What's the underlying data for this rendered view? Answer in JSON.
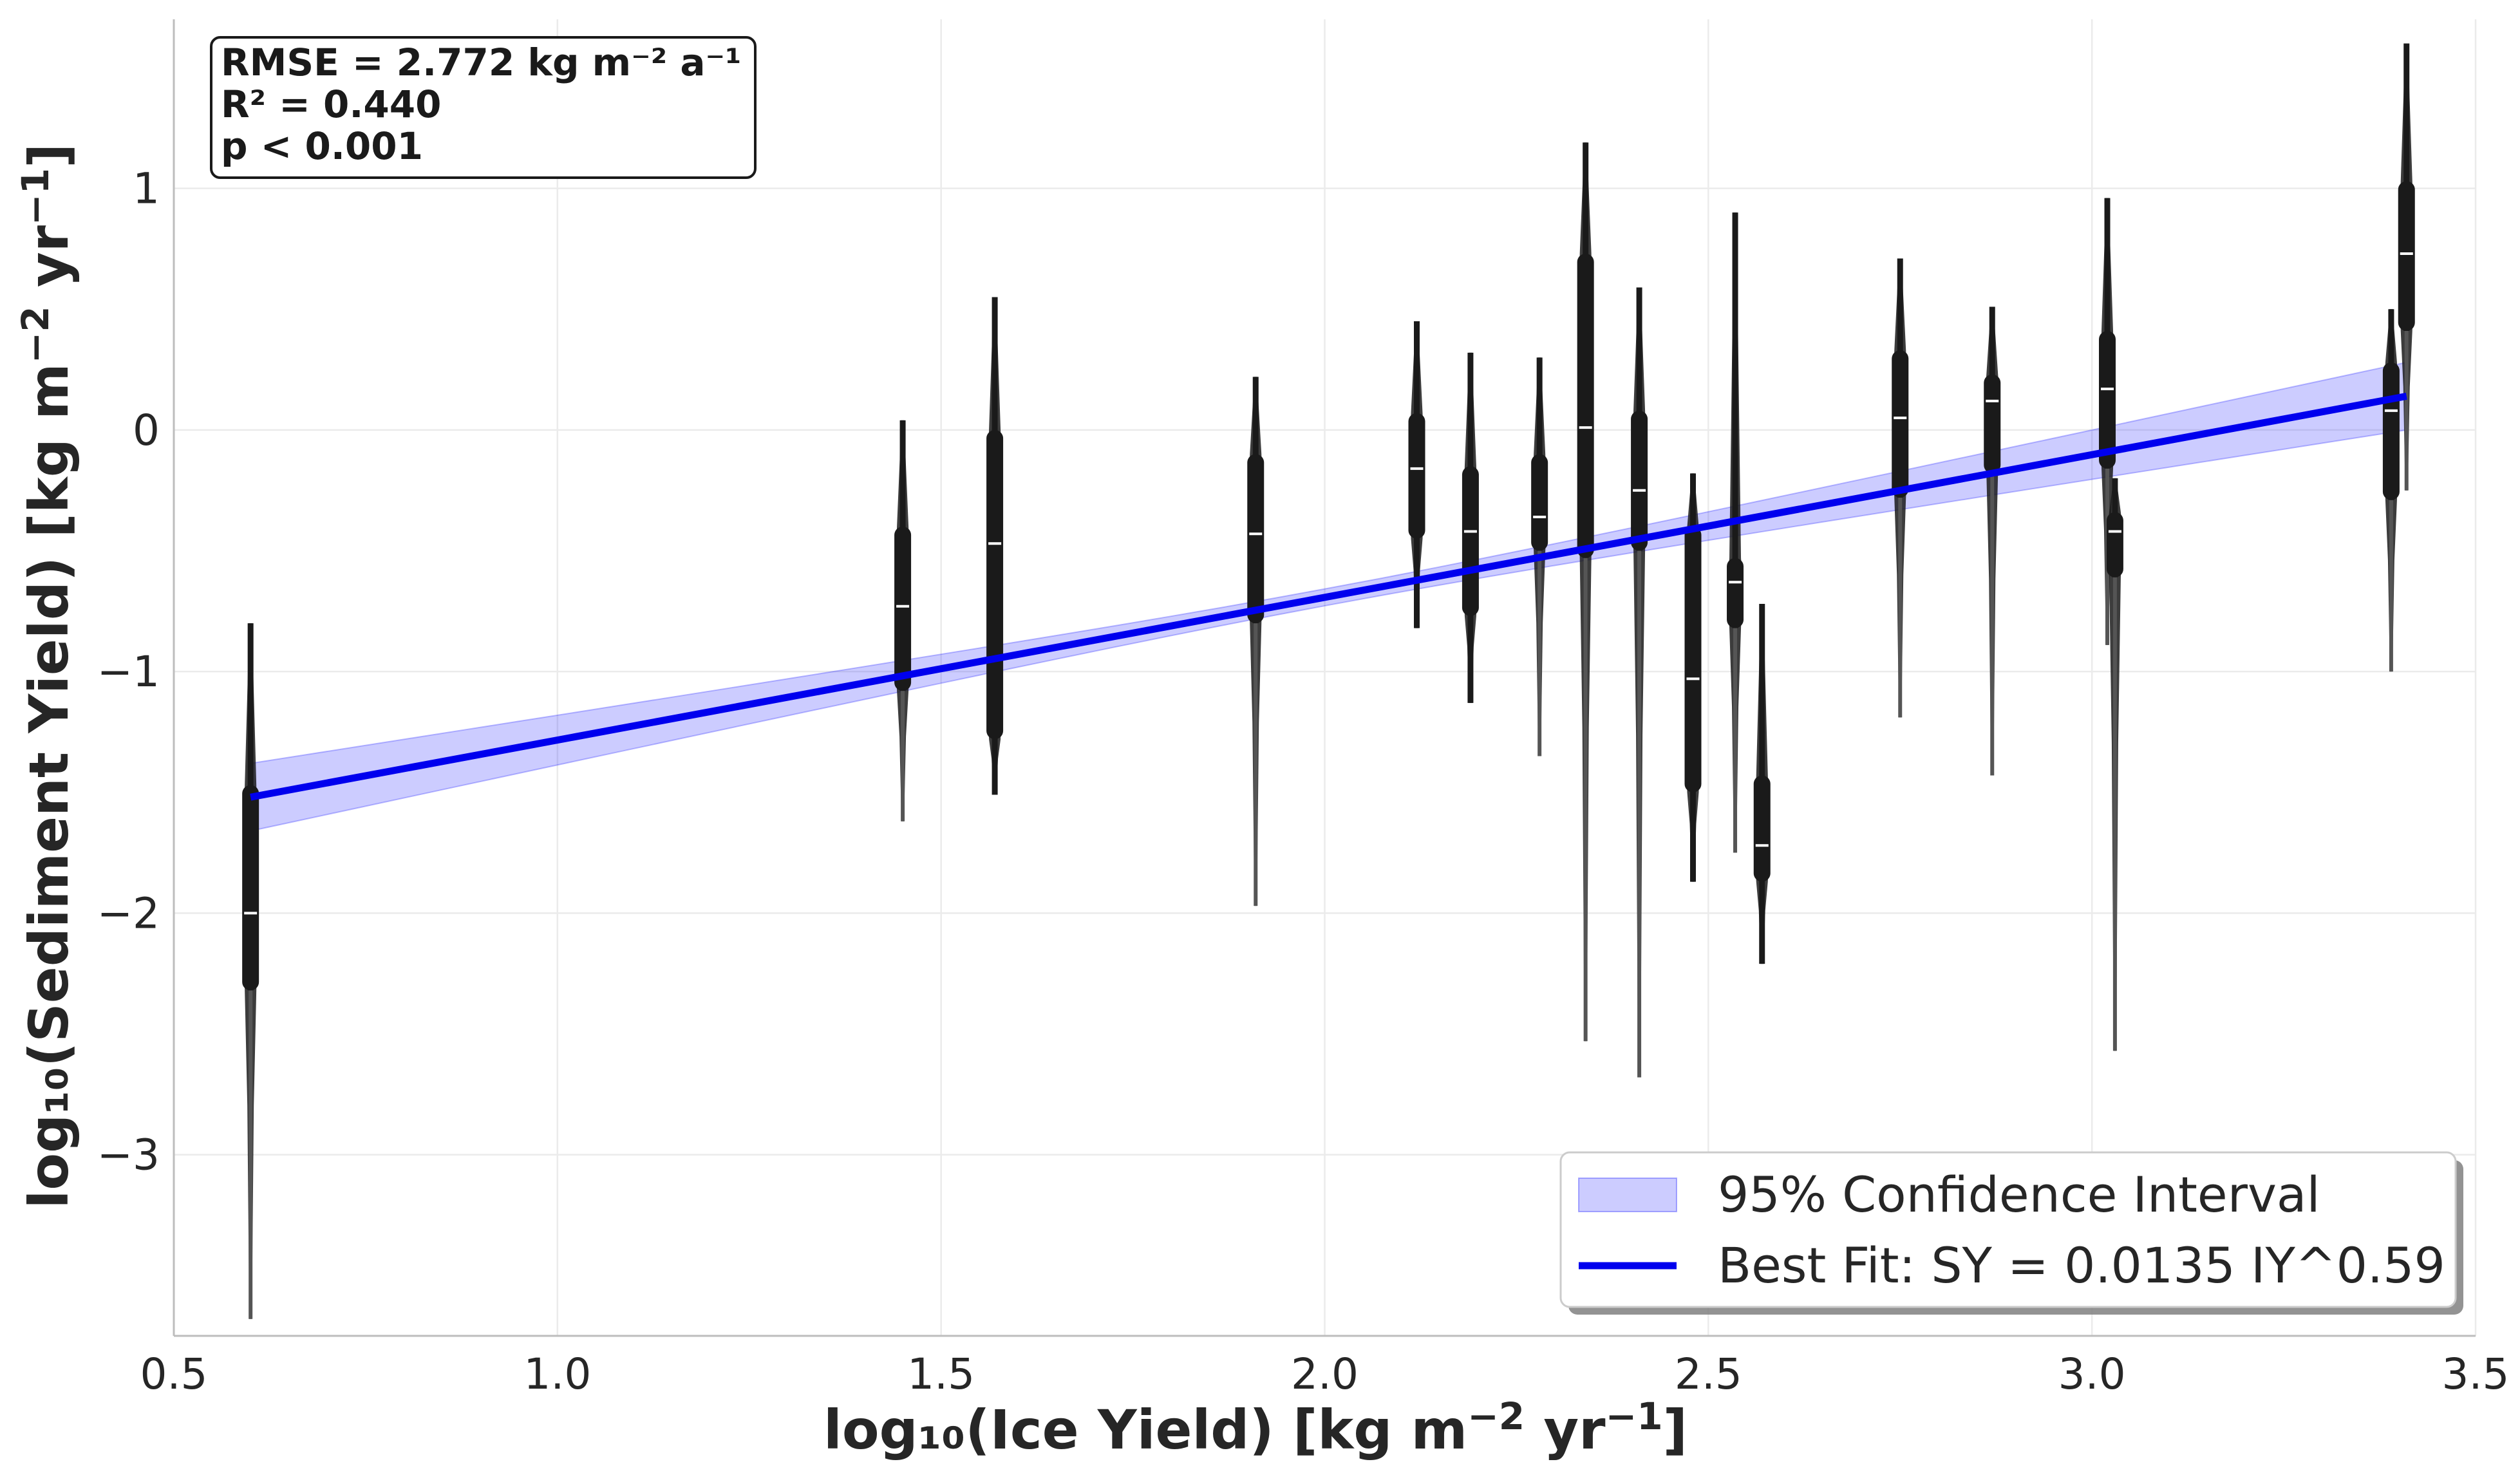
{
  "chart_data": {
    "type": "violin-with-regression",
    "xlabel_main": "log₁₀(Ice Yield) [kg m",
    "xlabel_sup1": "−2",
    "xlabel_mid": " yr",
    "xlabel_sup2": "−1",
    "xlabel_end": "]",
    "ylabel_main": "log₁₀(Sediment Yield) [kg m",
    "ylabel_sup1": "−2",
    "ylabel_mid": " yr",
    "ylabel_sup2": "−1",
    "ylabel_end": "]",
    "xlim": [
      0.5,
      3.5
    ],
    "ylim": [
      -3.75,
      1.7
    ],
    "xticks": [
      0.5,
      1.0,
      1.5,
      2.0,
      2.5,
      3.0,
      3.5
    ],
    "xtick_labels": [
      "0.5",
      "1.0",
      "1.5",
      "2.0",
      "2.5",
      "3.0",
      "3.5"
    ],
    "yticks": [
      1,
      0,
      -1,
      -2,
      -3
    ],
    "ytick_labels": [
      "1",
      "0",
      "−1",
      "−2",
      "−3"
    ],
    "grid": true,
    "stats": {
      "line1": "RMSE = 2.772 kg m⁻² a⁻¹",
      "line2": "R² = 0.440",
      "line3": "p < 0.001"
    },
    "legend": {
      "placement": "lower-right",
      "ci_label": "95% Confidence Interval",
      "fit_label": "Best Fit: SY = 0.0135 IY^0.59"
    },
    "colors": {
      "fit_line": "#0000ee",
      "ci_fill": "#0000ff",
      "violin": "#1a1a1a",
      "median": "#ffffff"
    },
    "fit": {
      "x": [
        0.6,
        3.41
      ],
      "y": [
        -1.52,
        0.14
      ],
      "ci_halfwidth_ends": 0.14,
      "ci_halfwidth_mid": 0.035
    },
    "violins": [
      {
        "x": 0.6,
        "min": -3.68,
        "q1": -2.32,
        "median": -2.0,
        "q3": -1.47,
        "max": -0.8
      },
      {
        "x": 1.45,
        "min": -1.62,
        "q1": -1.08,
        "median": -0.73,
        "q3": -0.4,
        "max": 0.04
      },
      {
        "x": 1.57,
        "min": -1.51,
        "q1": -1.28,
        "median": -0.47,
        "q3": 0.0,
        "max": 0.55
      },
      {
        "x": 1.91,
        "min": -1.97,
        "q1": -0.8,
        "median": -0.43,
        "q3": -0.1,
        "max": 0.22
      },
      {
        "x": 2.12,
        "min": -0.82,
        "q1": -0.45,
        "median": -0.16,
        "q3": 0.07,
        "max": 0.45
      },
      {
        "x": 2.19,
        "min": -1.13,
        "q1": -0.77,
        "median": -0.42,
        "q3": -0.15,
        "max": 0.32
      },
      {
        "x": 2.28,
        "min": -1.35,
        "q1": -0.5,
        "median": -0.36,
        "q3": -0.1,
        "max": 0.3
      },
      {
        "x": 2.34,
        "min": -2.53,
        "q1": -0.53,
        "median": 0.01,
        "q3": 0.73,
        "max": 1.19
      },
      {
        "x": 2.41,
        "min": -2.68,
        "q1": -0.5,
        "median": -0.25,
        "q3": 0.08,
        "max": 0.59
      },
      {
        "x": 2.48,
        "min": -1.87,
        "q1": -1.5,
        "median": -1.03,
        "q3": -0.4,
        "max": -0.18
      },
      {
        "x": 2.535,
        "min": -1.75,
        "q1": -0.82,
        "median": -0.63,
        "q3": -0.53,
        "max": 0.9
      },
      {
        "x": 2.57,
        "min": -2.21,
        "q1": -1.87,
        "median": -1.72,
        "q3": -1.43,
        "max": -0.72
      },
      {
        "x": 2.75,
        "min": -1.19,
        "q1": -0.28,
        "median": 0.05,
        "q3": 0.33,
        "max": 0.71
      },
      {
        "x": 2.87,
        "min": -1.43,
        "q1": -0.18,
        "median": 0.12,
        "q3": 0.23,
        "max": 0.51
      },
      {
        "x": 3.02,
        "min": -0.89,
        "q1": -0.16,
        "median": 0.17,
        "q3": 0.41,
        "max": 0.96
      },
      {
        "x": 3.03,
        "min": -2.57,
        "q1": -0.61,
        "median": -0.42,
        "q3": -0.34,
        "max": -0.2
      },
      {
        "x": 3.39,
        "min": -1.0,
        "q1": -0.29,
        "median": 0.08,
        "q3": 0.28,
        "max": 0.5
      },
      {
        "x": 3.41,
        "min": -0.25,
        "q1": 0.41,
        "median": 0.73,
        "q3": 1.03,
        "max": 1.6
      }
    ]
  }
}
